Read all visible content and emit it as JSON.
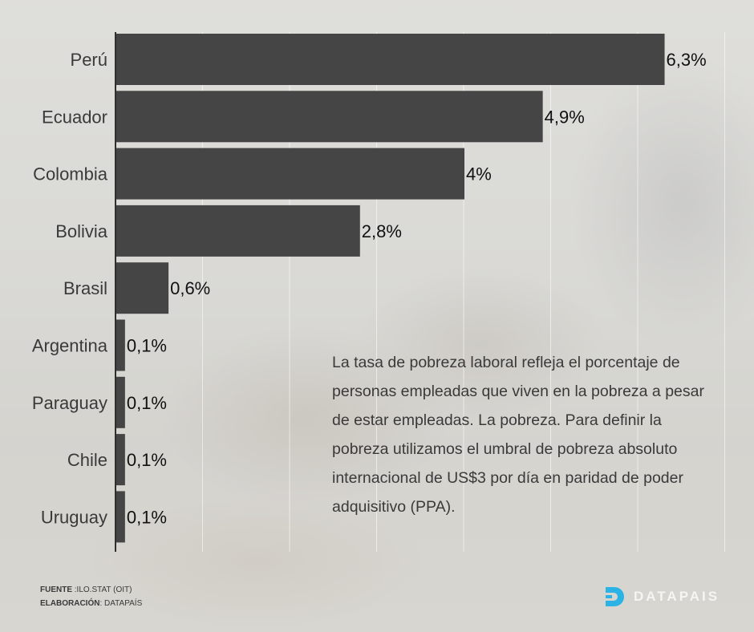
{
  "chart_data": {
    "type": "bar",
    "orientation": "horizontal",
    "categories": [
      "Perú",
      "Ecuador",
      "Colombia",
      "Bolivia",
      "Brasil",
      "Argentina",
      "Paraguay",
      "Chile",
      "Uruguay"
    ],
    "values": [
      6.3,
      4.9,
      4.0,
      2.8,
      0.6,
      0.1,
      0.1,
      0.1,
      0.1
    ],
    "data_labels": [
      "6,3%",
      "4,9%",
      "4%",
      "2,8%",
      "0,6%",
      "0,1%",
      "0,1%",
      "0,1%",
      "0,1%"
    ],
    "xlim": [
      0,
      7
    ],
    "grid": true,
    "bar_color": "#454545",
    "title": "",
    "xlabel": "",
    "ylabel": ""
  },
  "description": "La tasa de pobreza laboral refleja el porcentaje de personas empleadas que viven en la pobreza a pesar de estar empleadas. La pobreza. Para definir la pobreza utilizamos el umbral de pobreza absoluto internacional de US$3 por día en paridad de poder adquisitivo (PPA).",
  "footer": {
    "source_label": "FUENTE",
    "source_value": ":ILO.STAT (OIT)",
    "made_by_label": "ELABORACIÓN",
    "made_by_value": ": DATAPAÍS"
  },
  "brand": {
    "name": "DATAPAIS",
    "color": "#2bb3e6"
  }
}
